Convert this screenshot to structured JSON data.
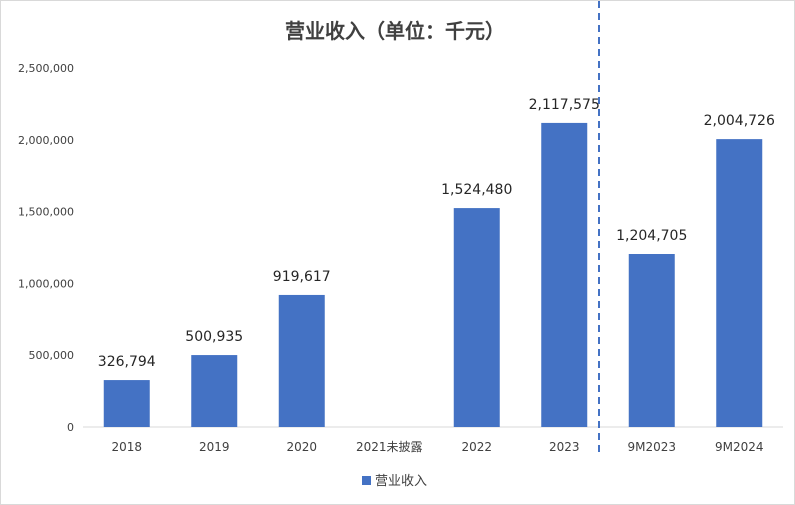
{
  "chart_data": {
    "type": "bar",
    "title": "营业收入（单位：千元）",
    "categories": [
      "2018",
      "2019",
      "2020",
      "2021未披露",
      "2022",
      "2023",
      "9M2023",
      "9M2024"
    ],
    "series": [
      {
        "name": "营业收入",
        "values": [
          326794,
          500935,
          919617,
          null,
          1524480,
          2117575,
          1204705,
          2004726
        ],
        "data_labels": [
          "326,794",
          "500,935",
          "919,617",
          "",
          "1,524,480",
          "2,117,575",
          "1,204,705",
          "2,004,726"
        ],
        "color": "#4472c4"
      }
    ],
    "yticks": [
      "0",
      "500,000",
      "1,000,000",
      "1,500,000",
      "2,000,000",
      "2,500,000"
    ],
    "ylim": [
      0,
      2500000
    ],
    "grid": false,
    "legend": "bottom",
    "divider_color": "#4472c4"
  }
}
